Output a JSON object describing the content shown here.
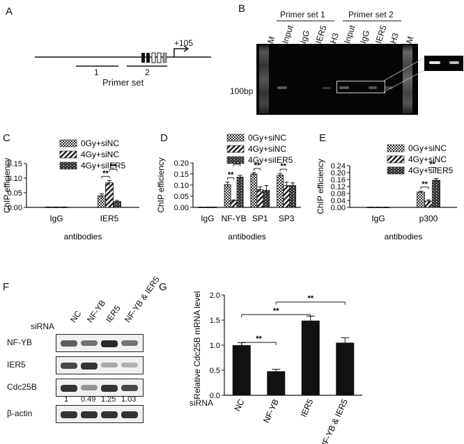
{
  "panelA": {
    "letter": "A",
    "tss_label": "+105",
    "primer1": "1",
    "primer2": "2",
    "caption": "Primer set"
  },
  "panelB": {
    "letter": "B",
    "primer_set_1": "Primer set 1",
    "primer_set_2": "Primer set 2",
    "lanes": [
      "M",
      "Input",
      "IgG",
      "IER5",
      "H3",
      "Input",
      "IgG",
      "IER5",
      "H3",
      "M"
    ],
    "size_marker": "100bp"
  },
  "panelC": {
    "letter": "C"
  },
  "panelD": {
    "letter": "D"
  },
  "panelE": {
    "letter": "E"
  },
  "panelF": {
    "letter": "F",
    "sirna_label": "siRNA",
    "lanes": [
      "NC",
      "NF-YB",
      "IER5",
      "NF-YB & IER5"
    ],
    "rows": [
      "NF-YB",
      "IER5",
      "Cdc25B",
      "β-actin"
    ],
    "cdc25b_quant": [
      "1",
      "0.49",
      "1.25",
      "1.03"
    ]
  },
  "panelG": {
    "letter": "G",
    "sirna_label": "siRNA"
  },
  "chart_data": [
    {
      "id": "C",
      "type": "bar",
      "ylabel": "ChIP efficiency",
      "xlabel": "antibodies",
      "ylim": [
        0,
        0.15
      ],
      "yticks": [
        "0.00",
        "0.05",
        "0.10",
        "0.15"
      ],
      "categories": [
        "IgG",
        "IER5"
      ],
      "legend": [
        "0Gy+siNC",
        "4Gy+siNC",
        "4Gy+siIER5"
      ],
      "series": [
        {
          "name": "0Gy+siNC",
          "values": [
            0.001,
            0.04
          ],
          "errors": [
            0.0005,
            0.006
          ]
        },
        {
          "name": "4Gy+siNC",
          "values": [
            0.001,
            0.084
          ],
          "errors": [
            0.0005,
            0.008
          ]
        },
        {
          "name": "4Gy+siIER5",
          "values": [
            0.001,
            0.02
          ],
          "errors": [
            0.0005,
            0.004
          ]
        }
      ],
      "significance": [
        "**",
        "**"
      ]
    },
    {
      "id": "D",
      "type": "bar",
      "ylabel": "ChIP efficiency",
      "xlabel": "antibodies",
      "ylim": [
        0,
        0.2
      ],
      "yticks": [
        "0.00",
        "0.05",
        "0.10",
        "0.15",
        "0.20"
      ],
      "categories": [
        "IgG",
        "NF-YB",
        "SP1",
        "SP3"
      ],
      "legend": [
        "0Gy+siNC",
        "4Gy+siNC",
        "4Gy+siIER5"
      ],
      "series": [
        {
          "name": "0Gy+siNC",
          "values": [
            0.001,
            0.102,
            0.15,
            0.145
          ],
          "errors": [
            0.0005,
            0.012,
            0.006,
            0.008
          ]
        },
        {
          "name": "4Gy+siNC",
          "values": [
            0.001,
            0.03,
            0.08,
            0.098
          ],
          "errors": [
            0.0005,
            0.004,
            0.012,
            0.015
          ]
        },
        {
          "name": "4Gy+siIER5",
          "values": [
            0.001,
            0.136,
            0.076,
            0.098
          ],
          "errors": [
            0.0005,
            0.008,
            0.022,
            0.012
          ]
        }
      ],
      "significance": [
        "**",
        "**",
        "**",
        "**"
      ]
    },
    {
      "id": "E",
      "type": "bar",
      "ylabel": "ChIP efficiency",
      "xlabel": "antibodies",
      "ylim": [
        0,
        0.24
      ],
      "yticks": [
        "0.00",
        "0.04",
        "0.08",
        "0.12",
        "0.16",
        "0.20",
        "0.24"
      ],
      "categories": [
        "IgG",
        "p300"
      ],
      "legend": [
        "0Gy+siNC",
        "4Gy+siNC",
        "4Gy+siIER5"
      ],
      "series": [
        {
          "name": "0Gy+siNC",
          "values": [
            0.001,
            0.088
          ],
          "errors": [
            0.0005,
            0.005
          ]
        },
        {
          "name": "4Gy+siNC",
          "values": [
            0.001,
            0.036
          ],
          "errors": [
            0.0005,
            0.007
          ]
        },
        {
          "name": "4Gy+siIER5",
          "values": [
            0.001,
            0.156
          ],
          "errors": [
            0.0005,
            0.01
          ]
        }
      ],
      "significance": [
        "**",
        "**"
      ]
    },
    {
      "id": "G",
      "type": "bar",
      "ylabel": "Relative Cdc25B mRNA level",
      "ylim": [
        0,
        2.0
      ],
      "yticks": [
        "0.0",
        "0.5",
        "1.0",
        "1.5",
        "2.0"
      ],
      "categories": [
        "NC",
        "NF-YB",
        "IER5",
        "NF-YB & IER5"
      ],
      "values": [
        1.0,
        0.48,
        1.49,
        1.05
      ],
      "errors": [
        0.05,
        0.04,
        0.09,
        0.1
      ],
      "significance": [
        "**",
        "**",
        "**"
      ]
    }
  ]
}
